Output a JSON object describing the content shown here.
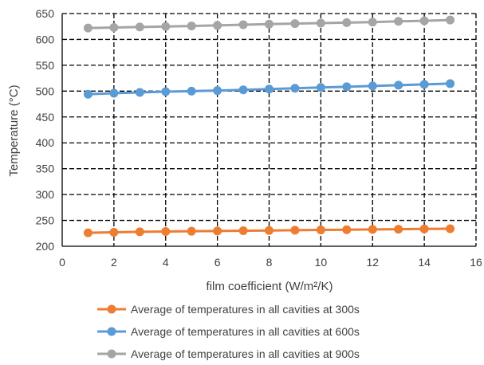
{
  "chart_data": {
    "type": "line",
    "title": "",
    "xlabel": "film coefficient (W/m²/K)",
    "ylabel": "Temperature (°C)",
    "xlim": [
      0,
      16
    ],
    "ylim": [
      200,
      650
    ],
    "x_ticks": [
      0,
      2,
      4,
      6,
      8,
      10,
      12,
      14,
      16
    ],
    "y_ticks": [
      200,
      250,
      300,
      350,
      400,
      450,
      500,
      550,
      600,
      650
    ],
    "grid": true,
    "legend_position": "bottom",
    "x": [
      1,
      2,
      3,
      4,
      5,
      6,
      7,
      8,
      9,
      10,
      11,
      12,
      13,
      14,
      15
    ],
    "series": [
      {
        "name": "Average of temperatures in all cavities at 300s",
        "color": "#ED7D31",
        "values": [
          226,
          227,
          228,
          228.5,
          229,
          229.5,
          230,
          230.5,
          231,
          231.5,
          232,
          232.5,
          233,
          233.5,
          234
        ]
      },
      {
        "name": "Average of temperatures in all cavities at 600s",
        "color": "#5B9BD5",
        "values": [
          494,
          496,
          497.5,
          499,
          500,
          501,
          502.5,
          504,
          505.5,
          507,
          508.5,
          510,
          511.5,
          513,
          514.5
        ]
      },
      {
        "name": "Average of temperatures in all cavities at 900s",
        "color": "#A5A5A5",
        "values": [
          622,
          623,
          624,
          625,
          626,
          627,
          628.5,
          629.5,
          630.5,
          631.5,
          632.5,
          633.5,
          635,
          636,
          637.5
        ]
      }
    ]
  }
}
